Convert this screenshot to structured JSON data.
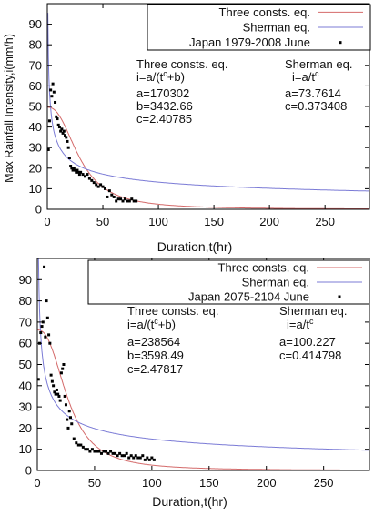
{
  "chart_data": [
    {
      "type": "scatter",
      "xlabel": "Duration,t(hr)",
      "ylabel": "Max Rainfall Intensity,i(mm/h)",
      "xlim": [
        0,
        290
      ],
      "ylim": [
        0,
        100
      ],
      "xticks": [
        "0",
        "50",
        "100",
        "150",
        "200",
        "250"
      ],
      "yticks": [
        "0",
        "10",
        "20",
        "30",
        "40",
        "50",
        "60",
        "70",
        "80",
        "90"
      ],
      "grid": false,
      "legend_position": "top-right",
      "legend": [
        "Three consts. eq.",
        "Sherman eq.",
        "Japan 1979-2008 June"
      ],
      "annotations": {
        "three": {
          "title": "Three consts. eq.",
          "formula": "i=a/(t^c+b)",
          "a": "a=170302",
          "b": "b=3432.66",
          "c": "c=2.40785"
        },
        "sherman": {
          "title": "Sherman eq.",
          "formula": "i=a/t^c",
          "a": "a=73.7614",
          "c": "c=0.373408"
        }
      },
      "three_params": {
        "a": 170302,
        "b": 3432.66,
        "c": 2.40785
      },
      "sherman_params": {
        "a": 73.7614,
        "c": 0.373408
      },
      "series": [
        {
          "name": "Japan 1979-2008 June",
          "color": "#000000",
          "x": [
            1,
            2,
            3,
            4,
            5,
            6,
            7,
            8,
            9,
            10,
            11,
            12,
            13,
            14,
            15,
            16,
            17,
            18,
            19,
            20,
            21,
            22,
            23,
            24,
            25,
            26,
            27,
            28,
            29,
            30,
            32,
            34,
            36,
            38,
            40,
            42,
            44,
            46,
            48,
            50,
            52,
            54,
            56,
            58,
            60,
            62,
            64,
            66,
            68,
            70,
            72,
            74,
            76,
            78,
            80
          ],
          "y": [
            29,
            43,
            58,
            55,
            61,
            57,
            52,
            45,
            44,
            41,
            40,
            38,
            39,
            37,
            38,
            36,
            35,
            33,
            30,
            25,
            21,
            20,
            19,
            20,
            19,
            18,
            19,
            18,
            17,
            18,
            17,
            16,
            17,
            15,
            14,
            13,
            12,
            11,
            12,
            11,
            10,
            6,
            9,
            7,
            6,
            4,
            5,
            5,
            4,
            5,
            4,
            4,
            5,
            4,
            4
          ]
        }
      ]
    },
    {
      "type": "scatter",
      "xlabel": "Duration,t(hr)",
      "ylabel": "",
      "xlim": [
        0,
        290
      ],
      "ylim": [
        0,
        100
      ],
      "xticks": [
        "0",
        "50",
        "100",
        "150",
        "200",
        "250"
      ],
      "yticks": [
        "0",
        "10",
        "20",
        "30",
        "40",
        "50",
        "60",
        "70",
        "80",
        "90"
      ],
      "grid": false,
      "legend_position": "top-right",
      "legend": [
        "Three consts. eq.",
        "Sherman eq.",
        "Japan 2075-2104 June"
      ],
      "annotations": {
        "three": {
          "title": "Three consts. eq.",
          "formula": "i=a/(t^c+b)",
          "a": "a=238564",
          "b": "b=3598.49",
          "c": "c=2.47817"
        },
        "sherman": {
          "title": "Sherman eq.",
          "formula": "i=a/t^c",
          "a": "a=100.227",
          "c": "c=0.414798"
        }
      },
      "three_params": {
        "a": 238564,
        "b": 3598.49,
        "c": 2.47817
      },
      "sherman_params": {
        "a": 100.227,
        "c": 0.414798
      },
      "series": [
        {
          "name": "Japan 2075-2104 June",
          "color": "#000000",
          "x": [
            1,
            2,
            3,
            4,
            5,
            6,
            7,
            8,
            9,
            10,
            11,
            12,
            13,
            14,
            15,
            16,
            17,
            18,
            19,
            20,
            21,
            22,
            23,
            24,
            25,
            26,
            27,
            28,
            29,
            30,
            32,
            34,
            36,
            38,
            40,
            42,
            44,
            46,
            48,
            50,
            52,
            54,
            56,
            58,
            60,
            62,
            64,
            66,
            68,
            70,
            72,
            74,
            76,
            78,
            80,
            82,
            84,
            86,
            88,
            90,
            92,
            94,
            96,
            98,
            100,
            102
          ],
          "y": [
            43,
            60,
            65,
            68,
            70,
            96,
            63,
            80,
            72,
            64,
            60,
            45,
            42,
            40,
            37,
            36,
            38,
            36,
            35,
            33,
            46,
            48,
            50,
            35,
            31,
            24,
            20,
            28,
            25,
            22,
            15,
            13,
            12,
            12,
            11,
            10,
            10,
            9,
            10,
            9,
            9,
            9,
            8,
            9,
            9,
            8,
            9,
            8,
            8,
            7,
            8,
            7,
            7,
            8,
            6,
            7,
            6,
            7,
            6,
            6,
            7,
            5,
            6,
            5,
            6,
            5
          ]
        }
      ]
    }
  ]
}
